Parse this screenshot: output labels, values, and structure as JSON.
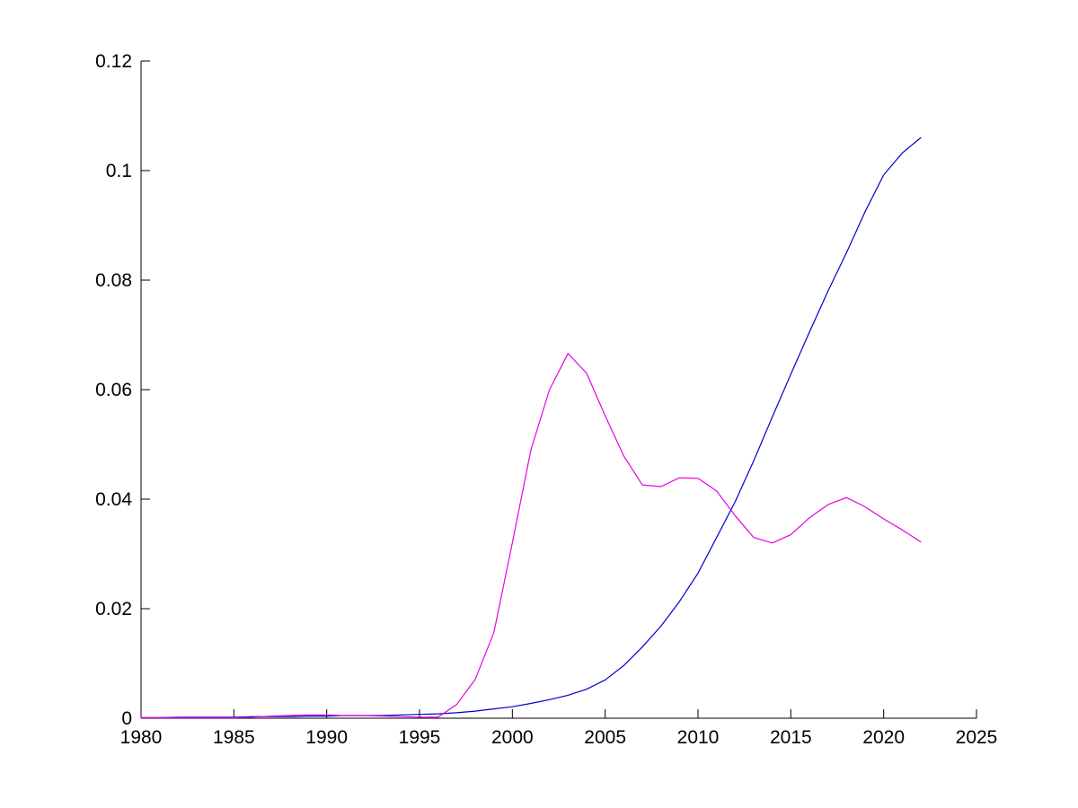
{
  "figure": {
    "background": "#ffffff",
    "axis_color": "#000000",
    "tick_label_color": "#000000"
  },
  "chart_data": {
    "type": "line",
    "title": "",
    "xlabel": "",
    "ylabel": "",
    "grid": false,
    "legend": null,
    "box": false,
    "xlim": [
      1980,
      2025
    ],
    "ylim": [
      0,
      0.12
    ],
    "x_ticks": [
      1980,
      1985,
      1990,
      1995,
      2000,
      2005,
      2010,
      2015,
      2020,
      2025
    ],
    "x_tick_labels": [
      "1980",
      "1985",
      "1990",
      "1995",
      "2000",
      "2005",
      "2010",
      "2015",
      "2020",
      "2025"
    ],
    "y_ticks": [
      0,
      0.02,
      0.04,
      0.06,
      0.08,
      0.1,
      0.12
    ],
    "y_tick_labels": [
      "0",
      "0.02",
      "0.04",
      "0.06",
      "0.08",
      "0.1",
      "0.12"
    ],
    "x": [
      1980,
      1981,
      1982,
      1983,
      1984,
      1985,
      1986,
      1987,
      1988,
      1989,
      1990,
      1991,
      1992,
      1993,
      1994,
      1995,
      1996,
      1997,
      1998,
      1999,
      2000,
      2001,
      2002,
      2003,
      2004,
      2005,
      2006,
      2007,
      2008,
      2009,
      2010,
      2011,
      2012,
      2013,
      2014,
      2015,
      2016,
      2017,
      2018,
      2019,
      2020,
      2021,
      2022
    ],
    "series": [
      {
        "name": "blue-line",
        "color": "#0000CC",
        "values": [
          0.0001,
          0.0001,
          0.0002,
          0.0002,
          0.0002,
          0.0002,
          0.0003,
          0.0003,
          0.0003,
          0.0004,
          0.0004,
          0.0005,
          0.0005,
          0.0005,
          0.0006,
          0.0007,
          0.0008,
          0.001,
          0.0013,
          0.0017,
          0.0021,
          0.0027,
          0.0034,
          0.0042,
          0.0053,
          0.007,
          0.0096,
          0.013,
          0.0168,
          0.0213,
          0.0265,
          0.033,
          0.0395,
          0.047,
          0.055,
          0.0628,
          0.0705,
          0.078,
          0.085,
          0.0925,
          0.0992,
          0.1032,
          0.106
        ]
      },
      {
        "name": "magenta-line",
        "color": "#E600E6",
        "values": [
          0.0001,
          0.0001,
          0.0001,
          0.0001,
          0.0001,
          0.0001,
          0.0002,
          0.0004,
          0.0005,
          0.0006,
          0.0006,
          0.0005,
          0.0005,
          0.0004,
          0.0003,
          0.0002,
          0.0002,
          0.0025,
          0.0071,
          0.0156,
          0.032,
          0.049,
          0.06,
          0.0666,
          0.063,
          0.0552,
          0.0479,
          0.0426,
          0.0423,
          0.0439,
          0.0438,
          0.0415,
          0.037,
          0.033,
          0.032,
          0.0335,
          0.0366,
          0.039,
          0.0403,
          0.0386,
          0.0364,
          0.0344,
          0.0322
        ]
      }
    ]
  }
}
